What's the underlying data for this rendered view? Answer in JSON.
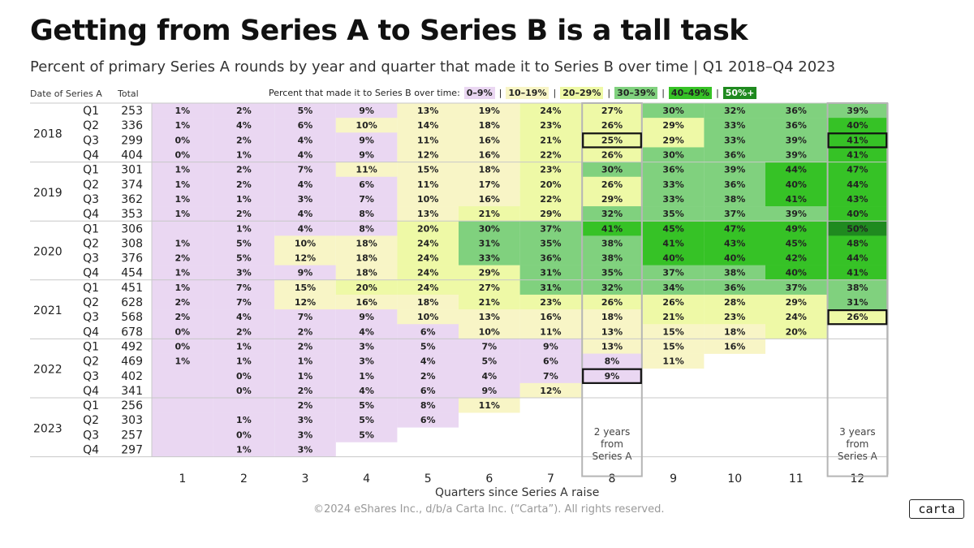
{
  "title": "Getting from Series A to Series B is a tall task",
  "subtitle": "Percent of primary Series A rounds by year and quarter that made it to Series B over time | Q1 2018–Q4 2023",
  "header": {
    "date_label": "Date of Series A",
    "total_label": "Total",
    "legend_prefix": "Percent that made it to Series B over time:"
  },
  "legend": [
    {
      "label": "0–9%",
      "color": "#ead7f2"
    },
    {
      "label": "10–19%",
      "color": "#f8f5c6"
    },
    {
      "label": "20–29%",
      "color": "#eef9a6"
    },
    {
      "label": "30–39%",
      "color": "#80d17e"
    },
    {
      "label": "40–49%",
      "color": "#36c226"
    },
    {
      "label": "50%+",
      "color": "#1f8a1f"
    }
  ],
  "xlabel": "Quarters since Series A raise",
  "footer": "©2024 eShares Inc., d/b/a Carta Inc. (“Carta”). All rights reserved.",
  "logo_text": "carta",
  "callouts": [
    {
      "column": 8,
      "text": [
        "2 years",
        "from",
        "Series A"
      ]
    },
    {
      "column": 12,
      "text": [
        "3 years",
        "from",
        "Series A"
      ]
    }
  ],
  "highlighted_cells": [
    {
      "row": 2,
      "column": 8
    },
    {
      "row": 2,
      "column": 12
    },
    {
      "row": 14,
      "column": 12
    },
    {
      "row": 18,
      "column": 8
    }
  ],
  "chart_data": {
    "type": "heatmap",
    "x": [
      1,
      2,
      3,
      4,
      5,
      6,
      7,
      8,
      9,
      10,
      11,
      12
    ],
    "rows": [
      {
        "year": "2018",
        "quarter": "Q1",
        "total": 253,
        "values": [
          1,
          2,
          5,
          9,
          13,
          19,
          24,
          27,
          30,
          32,
          36,
          39
        ]
      },
      {
        "year": "2018",
        "quarter": "Q2",
        "total": 336,
        "values": [
          1,
          4,
          6,
          10,
          14,
          18,
          23,
          26,
          29,
          33,
          36,
          40
        ]
      },
      {
        "year": "2018",
        "quarter": "Q3",
        "total": 299,
        "values": [
          0,
          2,
          4,
          9,
          11,
          16,
          21,
          25,
          29,
          33,
          39,
          41
        ]
      },
      {
        "year": "2018",
        "quarter": "Q4",
        "total": 404,
        "values": [
          0,
          1,
          4,
          9,
          12,
          16,
          22,
          26,
          30,
          36,
          39,
          41
        ]
      },
      {
        "year": "2019",
        "quarter": "Q1",
        "total": 301,
        "values": [
          1,
          2,
          7,
          11,
          15,
          18,
          23,
          30,
          36,
          39,
          44,
          47
        ]
      },
      {
        "year": "2019",
        "quarter": "Q2",
        "total": 374,
        "values": [
          1,
          2,
          4,
          6,
          11,
          17,
          20,
          26,
          33,
          36,
          40,
          44
        ]
      },
      {
        "year": "2019",
        "quarter": "Q3",
        "total": 362,
        "values": [
          1,
          1,
          3,
          7,
          10,
          16,
          22,
          29,
          33,
          38,
          41,
          43
        ]
      },
      {
        "year": "2019",
        "quarter": "Q4",
        "total": 353,
        "values": [
          1,
          2,
          4,
          8,
          13,
          21,
          29,
          32,
          35,
          37,
          39,
          40
        ]
      },
      {
        "year": "2020",
        "quarter": "Q1",
        "total": 306,
        "values": [
          null,
          1,
          4,
          8,
          20,
          30,
          37,
          41,
          45,
          47,
          49,
          50
        ]
      },
      {
        "year": "2020",
        "quarter": "Q2",
        "total": 308,
        "values": [
          1,
          5,
          10,
          18,
          24,
          31,
          35,
          38,
          41,
          43,
          45,
          48
        ]
      },
      {
        "year": "2020",
        "quarter": "Q3",
        "total": 376,
        "values": [
          2,
          5,
          12,
          18,
          24,
          33,
          36,
          38,
          40,
          40,
          42,
          44
        ]
      },
      {
        "year": "2020",
        "quarter": "Q4",
        "total": 454,
        "values": [
          1,
          3,
          9,
          18,
          24,
          29,
          31,
          35,
          37,
          38,
          40,
          41
        ]
      },
      {
        "year": "2021",
        "quarter": "Q1",
        "total": 451,
        "values": [
          1,
          7,
          15,
          20,
          24,
          27,
          31,
          32,
          34,
          36,
          37,
          38
        ]
      },
      {
        "year": "2021",
        "quarter": "Q2",
        "total": 628,
        "values": [
          2,
          7,
          12,
          16,
          18,
          21,
          23,
          26,
          26,
          28,
          29,
          31
        ]
      },
      {
        "year": "2021",
        "quarter": "Q3",
        "total": 568,
        "values": [
          2,
          4,
          7,
          9,
          10,
          13,
          16,
          18,
          21,
          23,
          24,
          26
        ]
      },
      {
        "year": "2021",
        "quarter": "Q4",
        "total": 678,
        "values": [
          0,
          2,
          2,
          4,
          6,
          10,
          11,
          13,
          15,
          18,
          20,
          null
        ]
      },
      {
        "year": "2022",
        "quarter": "Q1",
        "total": 492,
        "values": [
          0,
          1,
          2,
          3,
          5,
          7,
          9,
          13,
          15,
          16,
          null,
          null
        ]
      },
      {
        "year": "2022",
        "quarter": "Q2",
        "total": 469,
        "values": [
          1,
          1,
          1,
          3,
          4,
          5,
          6,
          8,
          11,
          null,
          null,
          null
        ]
      },
      {
        "year": "2022",
        "quarter": "Q3",
        "total": 402,
        "values": [
          null,
          0,
          1,
          1,
          2,
          4,
          7,
          9,
          null,
          null,
          null,
          null
        ]
      },
      {
        "year": "2022",
        "quarter": "Q4",
        "total": 341,
        "values": [
          null,
          0,
          2,
          4,
          6,
          9,
          12,
          null,
          null,
          null,
          null,
          null
        ]
      },
      {
        "year": "2023",
        "quarter": "Q1",
        "total": 256,
        "values": [
          null,
          null,
          2,
          5,
          8,
          11,
          null,
          null,
          null,
          null,
          null,
          null
        ]
      },
      {
        "year": "2023",
        "quarter": "Q2",
        "total": 303,
        "values": [
          null,
          1,
          3,
          5,
          6,
          null,
          null,
          null,
          null,
          null,
          null,
          null
        ]
      },
      {
        "year": "2023",
        "quarter": "Q3",
        "total": 257,
        "values": [
          null,
          0,
          3,
          5,
          null,
          null,
          null,
          null,
          null,
          null,
          null,
          null
        ]
      },
      {
        "year": "2023",
        "quarter": "Q4",
        "total": 297,
        "values": [
          null,
          1,
          3,
          null,
          null,
          null,
          null,
          null,
          null,
          null,
          null,
          null
        ]
      }
    ],
    "empty_cells_shaded": [
      {
        "row": 8,
        "column": 1
      },
      {
        "row": 18,
        "column": 1
      },
      {
        "row": 19,
        "column": 1
      },
      {
        "row": 20,
        "column": 1
      },
      {
        "row": 20,
        "column": 2
      },
      {
        "row": 21,
        "column": 1
      },
      {
        "row": 22,
        "column": 1
      },
      {
        "row": 23,
        "column": 1
      }
    ]
  }
}
